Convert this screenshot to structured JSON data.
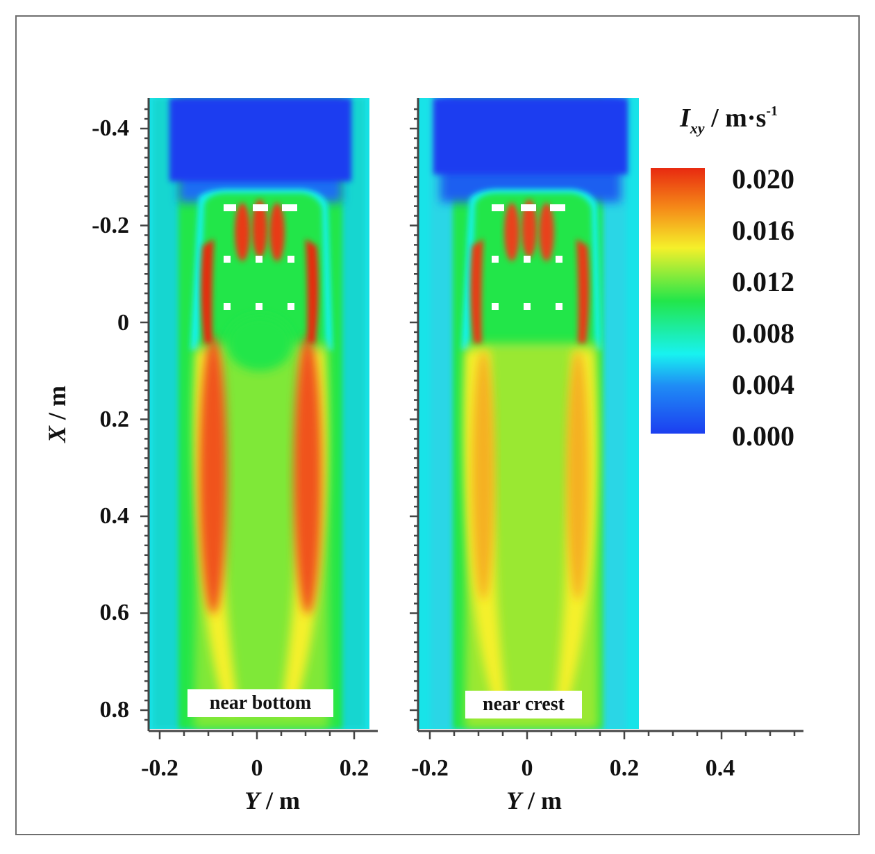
{
  "chart_data": [
    {
      "type": "heatmap",
      "panel_label": "near bottom",
      "xlabel_var": "Y",
      "xlabel_unit": " / m",
      "ylabel_var": "X",
      "ylabel_unit": " / m",
      "y_range": [
        -0.23,
        0.23
      ],
      "x_range": [
        -0.46,
        0.84
      ],
      "x_axis_inverted_downward": true,
      "xticks": [
        "-0.2",
        "0",
        "0.2"
      ],
      "yticks": [
        "-0.4",
        "-0.2",
        "0",
        "0.2",
        "0.4",
        "0.6",
        "0.8"
      ],
      "colormap": "jet",
      "field_description": "High values (~0.020) along two side streaks and three jets downstream of the dotted grid; broad red lobes near X=0.3",
      "peak_value": 0.02
    },
    {
      "type": "heatmap",
      "panel_label": "near crest",
      "xlabel_var": "Y",
      "xlabel_unit": " / m",
      "y_range": [
        -0.23,
        0.23
      ],
      "x_range": [
        -0.46,
        0.84
      ],
      "xticks": [
        "-0.2",
        "0",
        "0.2",
        "0.4"
      ],
      "colormap": "jet",
      "peak_value": 0.018
    }
  ],
  "colorbar": {
    "title_var": "I",
    "title_sub": "xy",
    "title_unit": " / m·s",
    "title_exp": "-1",
    "ticks": [
      "0.020",
      "0.016",
      "0.012",
      "0.008",
      "0.004",
      "0.000"
    ],
    "min": 0.0,
    "max": 0.02
  },
  "colors": {
    "jet": [
      "#1c3ef0",
      "#1f8cf5",
      "#18f2f0",
      "#22e64a",
      "#f5f02a",
      "#f58a18",
      "#e82a10"
    ]
  }
}
